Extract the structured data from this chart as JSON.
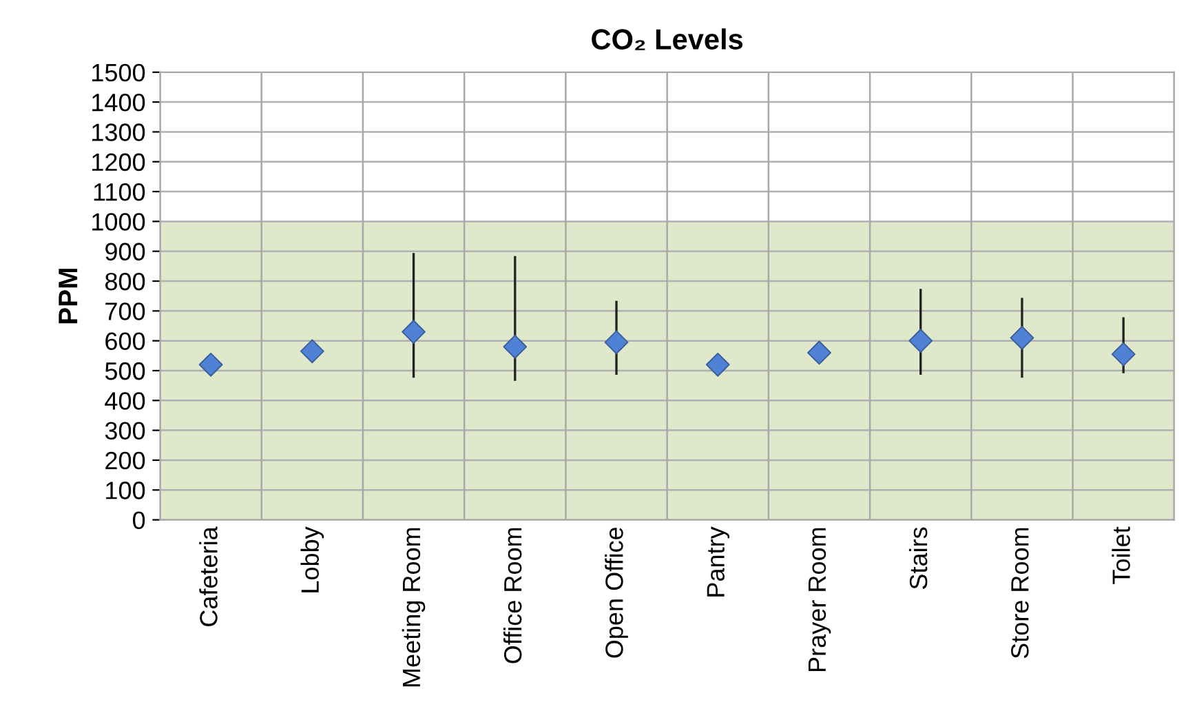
{
  "chart_data": {
    "type": "scatter",
    "title": "CO₂ Levels",
    "ylabel": "PPM",
    "categories": [
      "Cafeteria",
      "Lobby",
      "Meeting Room",
      "Office Room",
      "Open Office",
      "Pantry",
      "Prayer Room",
      "Stairs",
      "Store Room",
      "Toilet"
    ],
    "series": [
      {
        "color": "#4f81d4",
        "values": [
          520,
          565,
          630,
          580,
          595,
          520,
          560,
          600,
          610,
          555
        ],
        "errors": [
          null,
          null,
          [
            480,
            890
          ],
          [
            470,
            880
          ],
          [
            490,
            730
          ],
          null,
          null,
          [
            490,
            770
          ],
          [
            480,
            740
          ],
          [
            495,
            675
          ]
        ]
      }
    ],
    "ylim": [
      0,
      1500
    ],
    "yticks": [
      0,
      100,
      200,
      300,
      400,
      500,
      600,
      700,
      800,
      900,
      1000,
      1100,
      1200,
      1300,
      1400,
      1500
    ],
    "bands": [
      {
        "axis": "y",
        "from": 0,
        "to": 1000,
        "color": "#dfe8cb"
      }
    ],
    "grid": true,
    "marker": "diamond"
  }
}
